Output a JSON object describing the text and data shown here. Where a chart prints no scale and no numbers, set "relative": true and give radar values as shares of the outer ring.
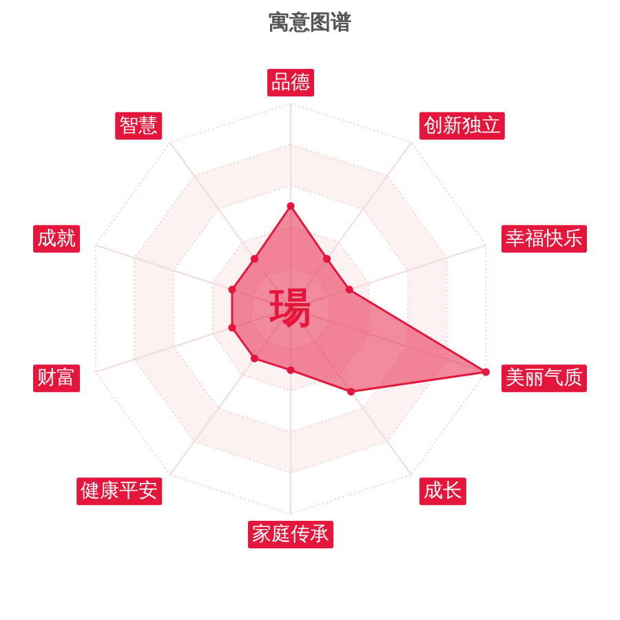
{
  "chart_data": {
    "type": "radar",
    "title": "寓意图谱",
    "categories": [
      "品德",
      "创新独立",
      "幸福快乐",
      "美丽气质",
      "成长",
      "家庭传承",
      "健康平安",
      "财富",
      "成就",
      "智慧"
    ],
    "relative": true,
    "series": [
      {
        "color": "#e4163c",
        "values": [
          0.5,
          0.3,
          0.3,
          1,
          0.5,
          0.3,
          0.3,
          0.3,
          0.3,
          0.3
        ]
      }
    ],
    "grid": true,
    "marker": "circle",
    "annotations": [
      "瑒"
    ]
  }
}
